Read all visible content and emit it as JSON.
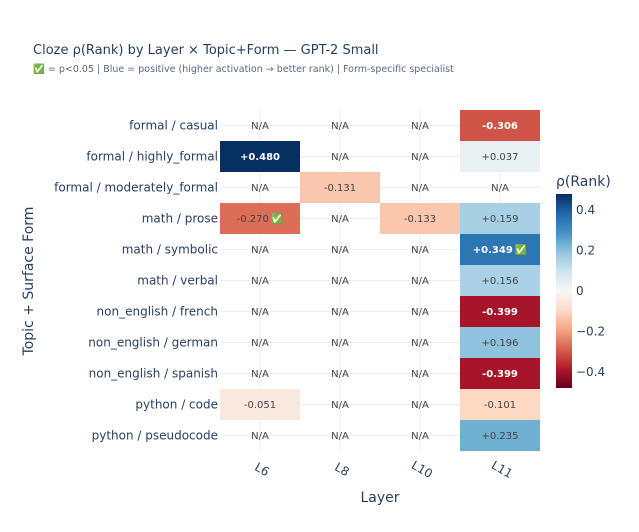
{
  "chart_data": {
    "type": "heatmap",
    "title": "Cloze ρ(Rank) by Layer × Topic+Form — GPT-2 Small",
    "subtitle_mark": "✅",
    "subtitle": " = p<0.05  |  Blue = positive (higher activation → better rank)  |  Form-specific specialist",
    "xlabel": "Layer",
    "ylabel": "Topic + Surface Form",
    "x": [
      "L6",
      "L8",
      "L10",
      "L11"
    ],
    "y": [
      "formal / casual",
      "formal / highly_formal",
      "formal / moderately_formal",
      "math / prose",
      "math / symbolic",
      "math / verbal",
      "non_english / french",
      "non_english / german",
      "non_english / spanish",
      "python / code",
      "python / pseudocode"
    ],
    "z": [
      [
        null,
        null,
        null,
        -0.306
      ],
      [
        0.48,
        null,
        null,
        0.037
      ],
      [
        null,
        -0.131,
        null,
        null
      ],
      [
        -0.27,
        null,
        -0.133,
        0.159
      ],
      [
        null,
        null,
        null,
        0.349
      ],
      [
        null,
        null,
        null,
        0.156
      ],
      [
        null,
        null,
        null,
        -0.399
      ],
      [
        null,
        null,
        null,
        0.196
      ],
      [
        null,
        null,
        null,
        -0.399
      ],
      [
        -0.051,
        null,
        null,
        -0.101
      ],
      [
        null,
        null,
        null,
        0.235
      ]
    ],
    "text": [
      [
        "N/A",
        "N/A",
        "N/A",
        "-0.306"
      ],
      [
        "+0.480",
        "N/A",
        "N/A",
        "+0.037"
      ],
      [
        "N/A",
        "-0.131",
        "N/A",
        "N/A"
      ],
      [
        "-0.270",
        "N/A",
        "-0.133",
        "+0.159"
      ],
      [
        "N/A",
        "N/A",
        "N/A",
        "+0.349"
      ],
      [
        "N/A",
        "N/A",
        "N/A",
        "+0.156"
      ],
      [
        "N/A",
        "N/A",
        "N/A",
        "-0.399"
      ],
      [
        "N/A",
        "N/A",
        "N/A",
        "+0.196"
      ],
      [
        "N/A",
        "N/A",
        "N/A",
        "-0.399"
      ],
      [
        "-0.051",
        "N/A",
        "N/A",
        "-0.101"
      ],
      [
        "N/A",
        "N/A",
        "N/A",
        "+0.235"
      ]
    ],
    "significant": [
      [
        false,
        false,
        false,
        false
      ],
      [
        false,
        false,
        false,
        false
      ],
      [
        false,
        false,
        false,
        false
      ],
      [
        true,
        false,
        false,
        false
      ],
      [
        false,
        false,
        false,
        true
      ],
      [
        false,
        false,
        false,
        false
      ],
      [
        false,
        false,
        false,
        false
      ],
      [
        false,
        false,
        false,
        false
      ],
      [
        false,
        false,
        false,
        false
      ],
      [
        false,
        false,
        false,
        false
      ],
      [
        false,
        false,
        false,
        false
      ]
    ],
    "significance_mark": "✅",
    "zmin": -0.48,
    "zmax": 0.48,
    "colorscale": "RdBu",
    "colorbar": {
      "title": "ρ(Rank)",
      "ticks": [
        0.4,
        0.2,
        0,
        -0.2,
        -0.4
      ],
      "tick_labels": [
        "0.4",
        "0.2",
        "0",
        "−0.2",
        "−0.4"
      ]
    },
    "grid": true
  }
}
